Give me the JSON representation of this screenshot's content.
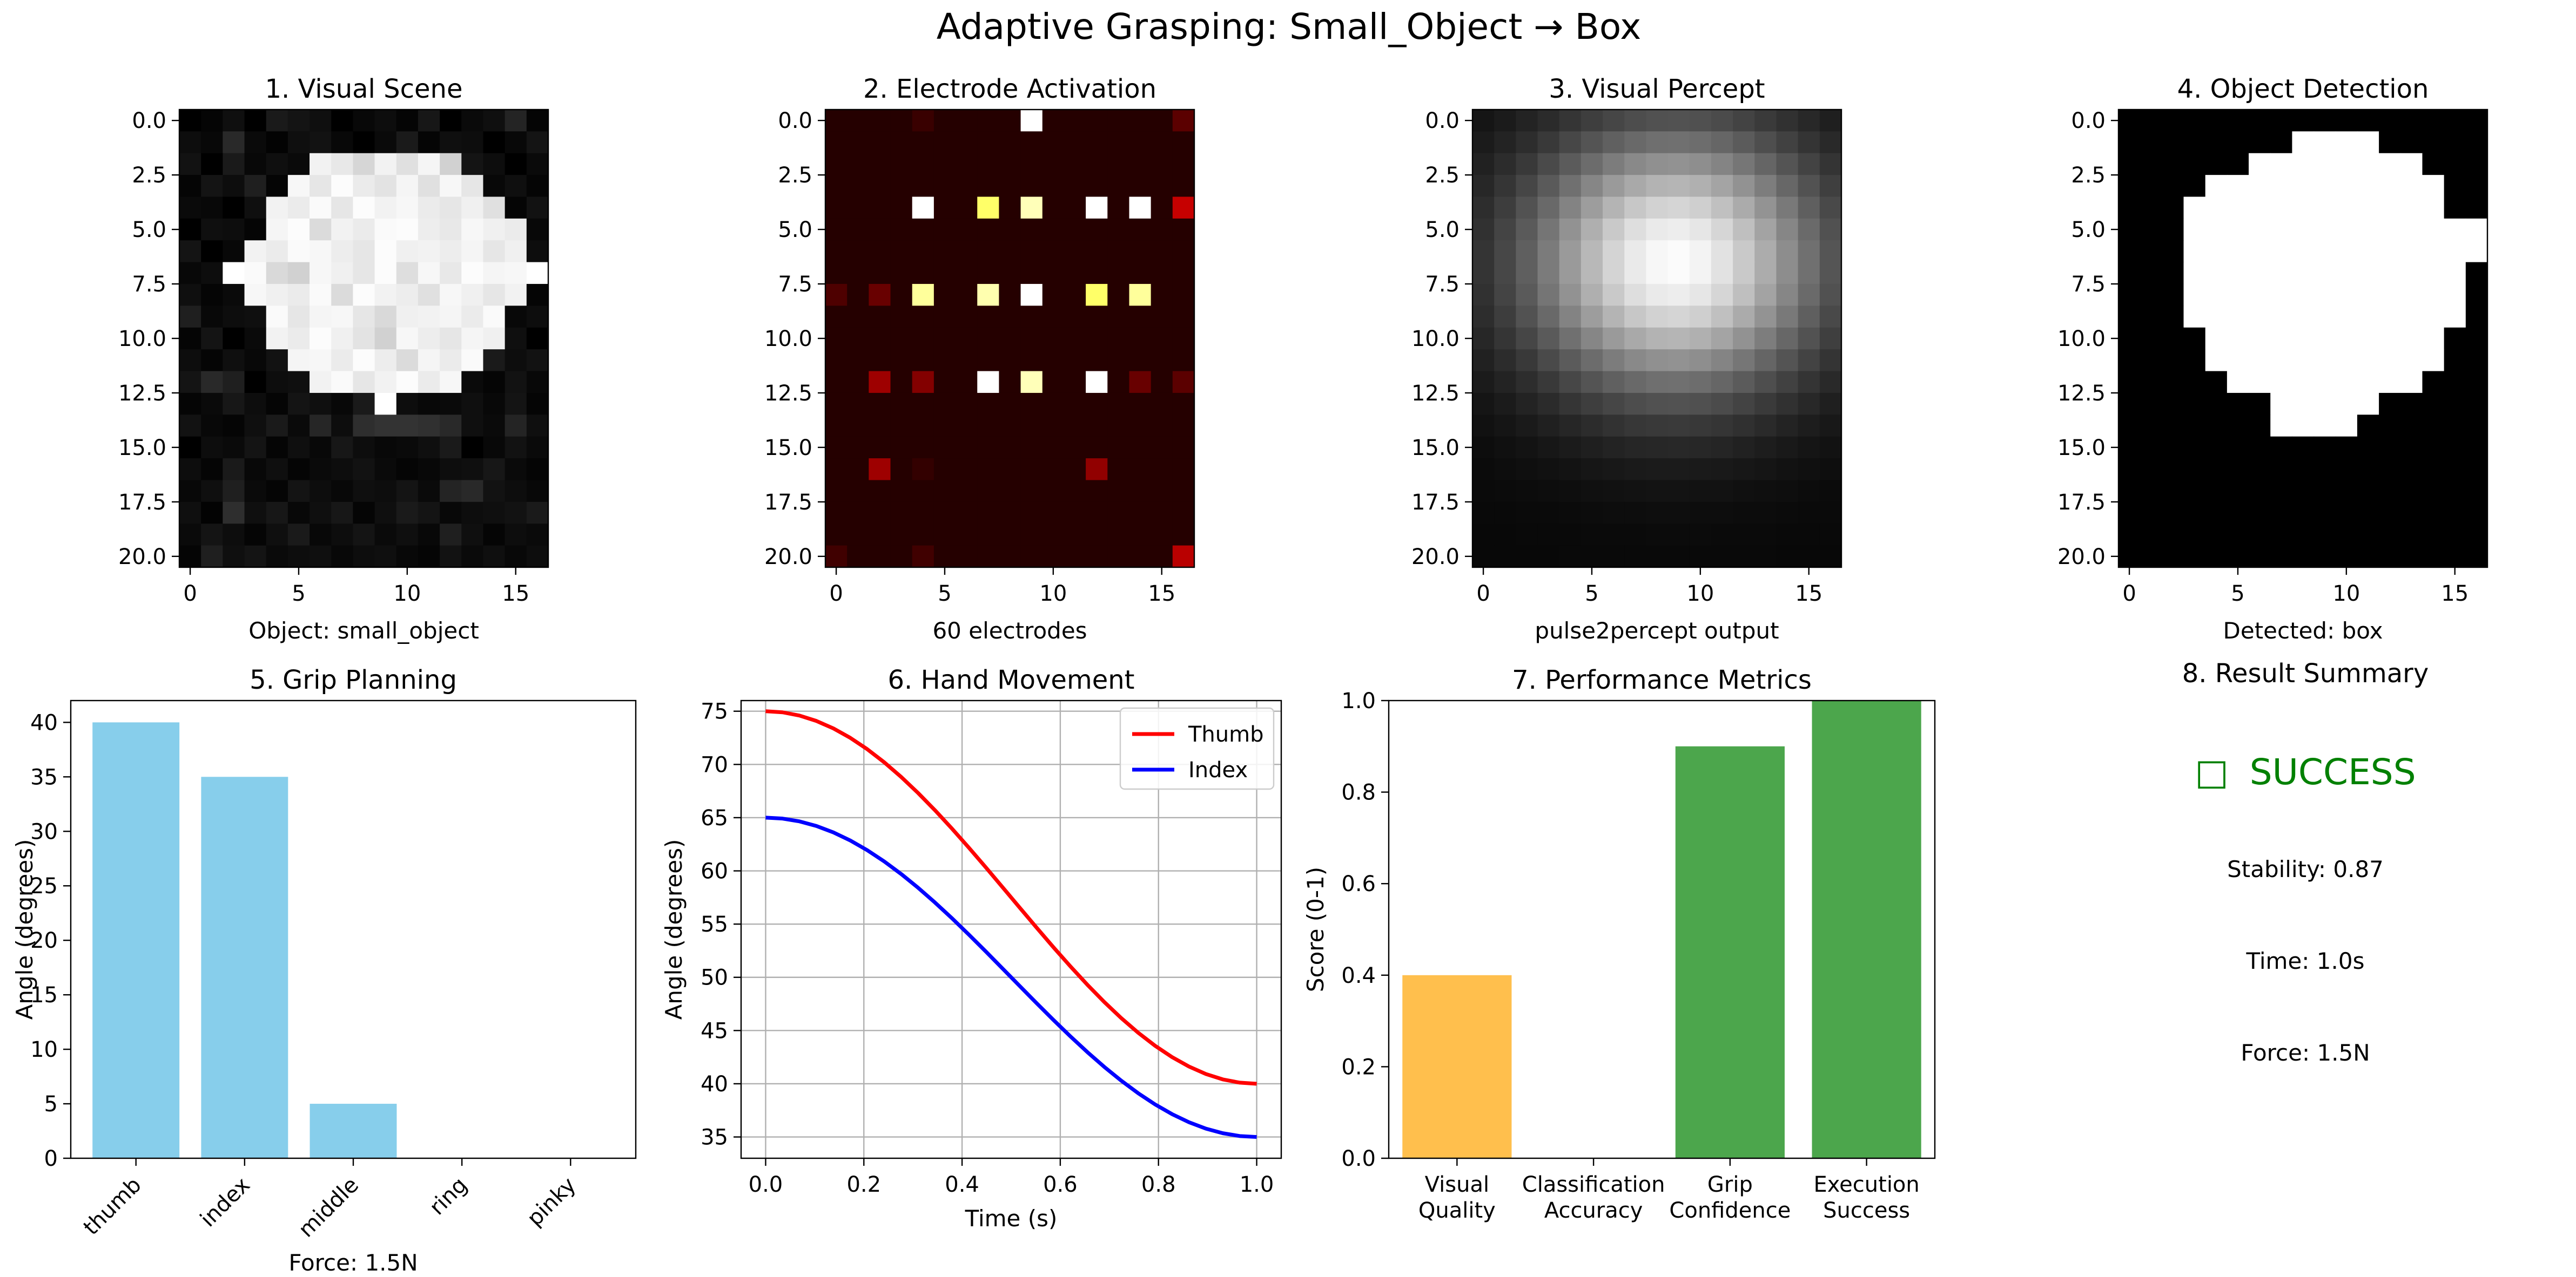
{
  "figure": {
    "suptitle": "Adaptive Grasping: Small_Object → Box"
  },
  "chart_data": [
    {
      "type": "heatmap",
      "title": "1. Visual Scene",
      "xlabel": "Object: small_object",
      "colormap": "gray",
      "grid_size": [
        21,
        17
      ],
      "xticks": [
        0,
        5,
        10,
        15
      ],
      "yticks": [
        0.0,
        2.5,
        5.0,
        7.5,
        10.0,
        12.5,
        15.0,
        17.5,
        20.0
      ],
      "xlim": [
        -0.5,
        16.5
      ],
      "ylim": [
        20.5,
        -0.5
      ],
      "note_values": "rows of brightness 0-1",
      "values": [
        [
          0.0,
          0.02,
          0.06,
          0.0,
          0.1,
          0.08,
          0.06,
          0.0,
          0.03,
          0.05,
          0.02,
          0.09,
          0.0,
          0.04,
          0.06,
          0.14,
          0.02
        ],
        [
          0.05,
          0.03,
          0.16,
          0.04,
          0.01,
          0.06,
          0.07,
          0.03,
          0.0,
          0.04,
          0.1,
          0.02,
          0.06,
          0.05,
          0.0,
          0.03,
          0.08
        ],
        [
          0.07,
          0.0,
          0.1,
          0.03,
          0.06,
          0.04,
          0.95,
          0.91,
          0.84,
          0.95,
          0.88,
          0.96,
          0.82,
          0.08,
          0.05,
          0.0,
          0.04
        ],
        [
          0.02,
          0.08,
          0.05,
          0.12,
          0.02,
          0.97,
          0.9,
          0.99,
          0.92,
          0.89,
          0.96,
          0.88,
          0.97,
          0.9,
          0.03,
          0.06,
          0.02
        ],
        [
          0.04,
          0.03,
          0.0,
          0.06,
          0.95,
          0.92,
          0.98,
          0.9,
          0.99,
          0.95,
          0.97,
          0.92,
          0.9,
          0.94,
          0.88,
          0.02,
          0.07
        ],
        [
          0.0,
          0.06,
          0.05,
          0.02,
          0.96,
          0.99,
          0.86,
          0.95,
          0.92,
          0.98,
          0.99,
          0.93,
          0.91,
          0.97,
          0.94,
          0.92,
          0.03
        ],
        [
          0.08,
          0.0,
          0.03,
          0.95,
          0.92,
          0.98,
          0.97,
          0.93,
          0.9,
          0.99,
          0.94,
          0.95,
          0.93,
          0.96,
          0.9,
          0.94,
          0.05
        ],
        [
          0.03,
          0.05,
          1.0,
          0.98,
          0.85,
          0.82,
          0.97,
          0.94,
          0.9,
          0.99,
          0.87,
          0.97,
          0.91,
          0.99,
          0.96,
          0.97,
          1.0
        ],
        [
          0.06,
          0.02,
          0.04,
          0.97,
          0.94,
          0.92,
          0.98,
          0.86,
          0.99,
          0.95,
          0.93,
          0.88,
          0.97,
          0.94,
          0.9,
          0.95,
          0.02
        ],
        [
          0.12,
          0.03,
          0.05,
          0.06,
          0.98,
          0.9,
          0.96,
          0.97,
          0.9,
          0.85,
          0.94,
          0.95,
          0.96,
          0.92,
          0.98,
          0.03,
          0.05
        ],
        [
          0.02,
          0.08,
          0.0,
          0.04,
          0.95,
          0.92,
          0.99,
          0.94,
          0.89,
          0.82,
          0.97,
          0.93,
          0.9,
          0.96,
          0.94,
          0.06,
          0.0
        ],
        [
          0.05,
          0.02,
          0.06,
          0.03,
          0.07,
          0.96,
          0.97,
          0.92,
          0.99,
          0.93,
          0.86,
          0.96,
          0.92,
          0.98,
          0.1,
          0.05,
          0.07
        ],
        [
          0.08,
          0.16,
          0.12,
          0.0,
          0.05,
          0.06,
          0.95,
          0.98,
          0.9,
          0.95,
          0.99,
          0.92,
          0.97,
          0.04,
          0.02,
          0.07,
          0.03
        ],
        [
          0.02,
          0.04,
          0.09,
          0.05,
          0.02,
          0.08,
          0.06,
          0.03,
          0.1,
          1.0,
          0.05,
          0.03,
          0.04,
          0.06,
          0.03,
          0.08,
          0.02
        ],
        [
          0.07,
          0.03,
          0.02,
          0.06,
          0.1,
          0.04,
          0.15,
          0.05,
          0.18,
          0.2,
          0.2,
          0.19,
          0.16,
          0.06,
          0.04,
          0.14,
          0.06
        ],
        [
          0.0,
          0.05,
          0.04,
          0.08,
          0.02,
          0.06,
          0.03,
          0.09,
          0.05,
          0.03,
          0.04,
          0.06,
          0.1,
          0.0,
          0.03,
          0.07,
          0.04
        ],
        [
          0.05,
          0.02,
          0.1,
          0.03,
          0.06,
          0.02,
          0.04,
          0.05,
          0.07,
          0.04,
          0.02,
          0.03,
          0.05,
          0.06,
          0.09,
          0.04,
          0.02
        ],
        [
          0.03,
          0.06,
          0.12,
          0.04,
          0.02,
          0.08,
          0.05,
          0.03,
          0.06,
          0.05,
          0.08,
          0.04,
          0.14,
          0.16,
          0.07,
          0.05,
          0.03
        ],
        [
          0.06,
          0.01,
          0.18,
          0.06,
          0.09,
          0.03,
          0.06,
          0.09,
          0.02,
          0.06,
          0.1,
          0.08,
          0.03,
          0.05,
          0.06,
          0.07,
          0.1
        ],
        [
          0.04,
          0.08,
          0.05,
          0.02,
          0.06,
          0.1,
          0.03,
          0.05,
          0.08,
          0.04,
          0.06,
          0.03,
          0.12,
          0.06,
          0.02,
          0.05,
          0.04
        ],
        [
          0.02,
          0.12,
          0.06,
          0.08,
          0.04,
          0.05,
          0.06,
          0.03,
          0.05,
          0.06,
          0.03,
          0.02,
          0.07,
          0.04,
          0.06,
          0.03,
          0.05
        ]
      ]
    },
    {
      "type": "heatmap",
      "title": "2. Electrode Activation",
      "xlabel": "60 electrodes",
      "colormap": "hot",
      "grid_size": [
        21,
        17
      ],
      "xticks": [
        0,
        5,
        10,
        15
      ],
      "yticks": [
        0.0,
        2.5,
        5.0,
        7.5,
        10.0,
        12.5,
        15.0,
        17.5,
        20.0
      ],
      "xlim": [
        -0.5,
        16.5
      ],
      "ylim": [
        20.5,
        -0.5
      ],
      "background_value": 0.04,
      "electrode_rows": [
        0,
        4,
        8,
        12,
        16,
        20
      ],
      "electrode_cols": [
        0,
        2,
        4,
        7,
        9,
        12,
        14,
        16
      ],
      "activations": [
        {
          "r": 0,
          "c": 4,
          "v": 0.07
        },
        {
          "r": 0,
          "c": 9,
          "v": 1.0
        },
        {
          "r": 0,
          "c": 16,
          "v": 0.12
        },
        {
          "r": 4,
          "c": 4,
          "v": 1.0
        },
        {
          "r": 4,
          "c": 7,
          "v": 0.85
        },
        {
          "r": 4,
          "c": 9,
          "v": 0.93
        },
        {
          "r": 4,
          "c": 12,
          "v": 1.0
        },
        {
          "r": 4,
          "c": 14,
          "v": 1.0
        },
        {
          "r": 4,
          "c": 16,
          "v": 0.28
        },
        {
          "r": 8,
          "c": 0,
          "v": 0.1
        },
        {
          "r": 8,
          "c": 2,
          "v": 0.14
        },
        {
          "r": 8,
          "c": 4,
          "v": 0.9
        },
        {
          "r": 8,
          "c": 7,
          "v": 0.92
        },
        {
          "r": 8,
          "c": 9,
          "v": 1.0
        },
        {
          "r": 8,
          "c": 12,
          "v": 0.85
        },
        {
          "r": 8,
          "c": 14,
          "v": 0.9
        },
        {
          "r": 12,
          "c": 2,
          "v": 0.22
        },
        {
          "r": 12,
          "c": 4,
          "v": 0.18
        },
        {
          "r": 12,
          "c": 7,
          "v": 1.0
        },
        {
          "r": 12,
          "c": 9,
          "v": 0.93
        },
        {
          "r": 12,
          "c": 12,
          "v": 1.0
        },
        {
          "r": 12,
          "c": 14,
          "v": 0.14
        },
        {
          "r": 12,
          "c": 16,
          "v": 0.12
        },
        {
          "r": 16,
          "c": 2,
          "v": 0.22
        },
        {
          "r": 16,
          "c": 4,
          "v": 0.06
        },
        {
          "r": 16,
          "c": 12,
          "v": 0.2
        },
        {
          "r": 20,
          "c": 0,
          "v": 0.08
        },
        {
          "r": 20,
          "c": 4,
          "v": 0.08
        },
        {
          "r": 20,
          "c": 16,
          "v": 0.26
        }
      ]
    },
    {
      "type": "heatmap",
      "title": "3. Visual Percept",
      "xlabel": "pulse2percept output",
      "colormap": "gray",
      "grid_size": [
        21,
        17
      ],
      "xticks": [
        0,
        5,
        10,
        15
      ],
      "yticks": [
        0.0,
        2.5,
        5.0,
        7.5,
        10.0,
        12.5,
        15.0,
        17.5,
        20.0
      ],
      "xlim": [
        -0.5,
        16.5
      ],
      "ylim": [
        20.5,
        -0.5
      ],
      "blob": {
        "center_row": 6.5,
        "center_col": 8.8,
        "spread_row": 5.5,
        "spread_col": 6.2,
        "peak": 0.99,
        "floor": 0.03
      }
    },
    {
      "type": "heatmap",
      "title": "4. Object Detection",
      "xlabel": "Detected: box",
      "colormap": "gray",
      "grid_size": [
        21,
        17
      ],
      "xticks": [
        0,
        5,
        10,
        15
      ],
      "yticks": [
        0.0,
        2.5,
        5.0,
        7.5,
        10.0,
        12.5,
        15.0,
        17.5,
        20.0
      ],
      "xlim": [
        -0.5,
        16.5
      ],
      "ylim": [
        20.5,
        -0.5
      ],
      "mask_runs": [
        null,
        [
          8,
          11
        ],
        [
          6,
          13
        ],
        [
          4,
          14
        ],
        [
          3,
          14
        ],
        [
          3,
          16
        ],
        [
          3,
          16
        ],
        [
          3,
          15
        ],
        [
          3,
          15
        ],
        [
          3,
          15
        ],
        [
          4,
          14
        ],
        [
          4,
          14
        ],
        [
          5,
          13
        ],
        [
          7,
          11
        ],
        [
          7,
          10
        ],
        null,
        null,
        null,
        null,
        null,
        null
      ]
    },
    {
      "type": "bar",
      "title": "5. Grip Planning",
      "xlabel": "Force: 1.5N",
      "ylabel": "Angle (degrees)",
      "categories": [
        "thumb",
        "index",
        "middle",
        "ring",
        "pinky"
      ],
      "values": [
        40,
        35,
        5,
        0,
        0
      ],
      "ylim": [
        0,
        42
      ],
      "yticks": [
        0,
        5,
        10,
        15,
        20,
        25,
        30,
        35,
        40
      ],
      "color": "#87ceeb"
    },
    {
      "type": "line",
      "title": "6. Hand Movement",
      "xlabel": "Time (s)",
      "ylabel": "Angle (degrees)",
      "grid": true,
      "legend": "top-right",
      "xlim": [
        -0.05,
        1.05
      ],
      "ylim": [
        33,
        76
      ],
      "xticks": [
        0.0,
        0.2,
        0.4,
        0.6,
        0.8,
        1.0
      ],
      "yticks": [
        35,
        40,
        45,
        50,
        55,
        60,
        65,
        70,
        75
      ],
      "x": [
        0.0,
        0.0345,
        0.069,
        0.1034,
        0.1379,
        0.1724,
        0.2069,
        0.2414,
        0.2759,
        0.3103,
        0.3448,
        0.3793,
        0.4138,
        0.4483,
        0.4828,
        0.5172,
        0.5517,
        0.5862,
        0.6207,
        0.6552,
        0.6897,
        0.7241,
        0.7586,
        0.7931,
        0.8276,
        0.8621,
        0.8966,
        0.931,
        0.9655,
        1.0
      ],
      "series": [
        {
          "name": "Thumb",
          "color": "#ff0000",
          "start": 75,
          "end": 40,
          "shape": "cosine"
        },
        {
          "name": "Index",
          "color": "#0000ff",
          "start": 65,
          "end": 35,
          "shape": "cosine"
        }
      ]
    },
    {
      "type": "bar",
      "title": "7. Performance Metrics",
      "ylabel": "Score (0-1)",
      "categories": [
        [
          "Visual",
          "Quality"
        ],
        [
          "Classification",
          "Accuracy"
        ],
        [
          "Grip",
          "Confidence"
        ],
        [
          "Execution",
          "Success"
        ]
      ],
      "values": [
        0.4,
        0.0,
        0.9,
        1.0
      ],
      "colors": [
        "#ffbf4d",
        "#d9534f",
        "#4ca64c",
        "#4ca64c"
      ],
      "ylim": [
        0,
        1.0
      ],
      "yticks": [
        0.0,
        0.2,
        0.4,
        0.6,
        0.8,
        1.0
      ]
    }
  ],
  "summary": {
    "title": "8. Result Summary",
    "status_glyph": "□",
    "status": "SUCCESS",
    "status_color": "#008000",
    "lines": [
      "Stability: 0.87",
      "Time: 1.0s",
      "Force: 1.5N"
    ]
  }
}
